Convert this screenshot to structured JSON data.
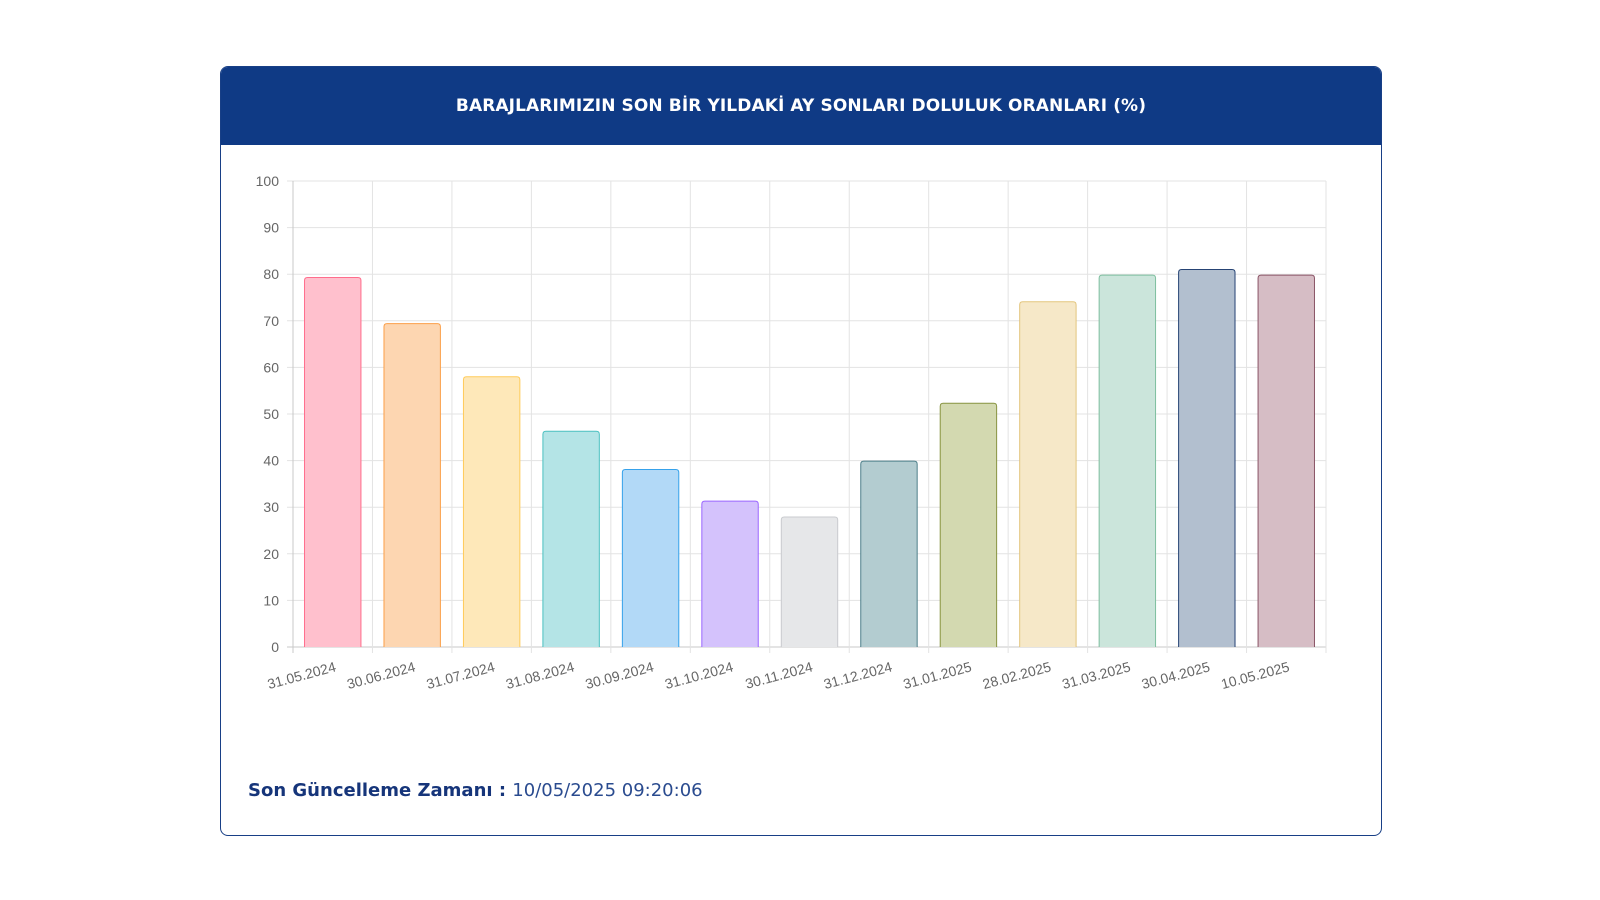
{
  "header": {
    "title": "BARAJLARIMIZIN SON BİR YILDAKİ AY SONLARI DOLULUK ORANLARI (%)"
  },
  "footer": {
    "label": "Son Güncelleme Zamanı",
    "separator": " : ",
    "value": "10/05/2025 09:20:06"
  },
  "colors": {
    "header_bg": "#0f3a85",
    "grid": "#e3e3e3",
    "tick_text": "#666666"
  },
  "chart_data": {
    "type": "bar",
    "title": "BARAJLARIMIZIN SON BİR YILDAKİ AY SONLARI DOLULUK ORANLARI (%)",
    "xlabel": "",
    "ylabel": "",
    "ylim": [
      0,
      100
    ],
    "yticks": [
      "0",
      "10",
      "20",
      "30",
      "40",
      "50",
      "60",
      "70",
      "80",
      "90",
      "100"
    ],
    "grid": true,
    "legend": "none",
    "categories": [
      "31.05.2024",
      "30.06.2024",
      "31.07.2024",
      "31.08.2024",
      "30.09.2024",
      "31.10.2024",
      "30.11.2024",
      "31.12.2024",
      "31.01.2025",
      "28.02.2025",
      "31.03.2025",
      "30.04.2025",
      "10.05.2025"
    ],
    "values": [
      79.3,
      69.4,
      58.0,
      46.3,
      38.1,
      31.3,
      27.9,
      39.9,
      52.3,
      74.1,
      79.8,
      81.0,
      79.8
    ],
    "bar_fill": [
      "#ffc0cd",
      "#fdd6b1",
      "#fee8b9",
      "#b4e4e6",
      "#b2d9f7",
      "#d4c2fc",
      "#e6e7e9",
      "#b3ccd0",
      "#d3d9b0",
      "#f6e8c8",
      "#cbe5db",
      "#b2bfcf",
      "#d6bdc5"
    ],
    "bar_stroke": [
      "#ff6d8c",
      "#fb9e47",
      "#ffcb5a",
      "#4bc0c0",
      "#36a2eb",
      "#9a66ff",
      "#c9cbcf",
      "#4d7f8a",
      "#889441",
      "#e3c57d",
      "#7ebf9f",
      "#264374",
      "#8a5466"
    ]
  }
}
